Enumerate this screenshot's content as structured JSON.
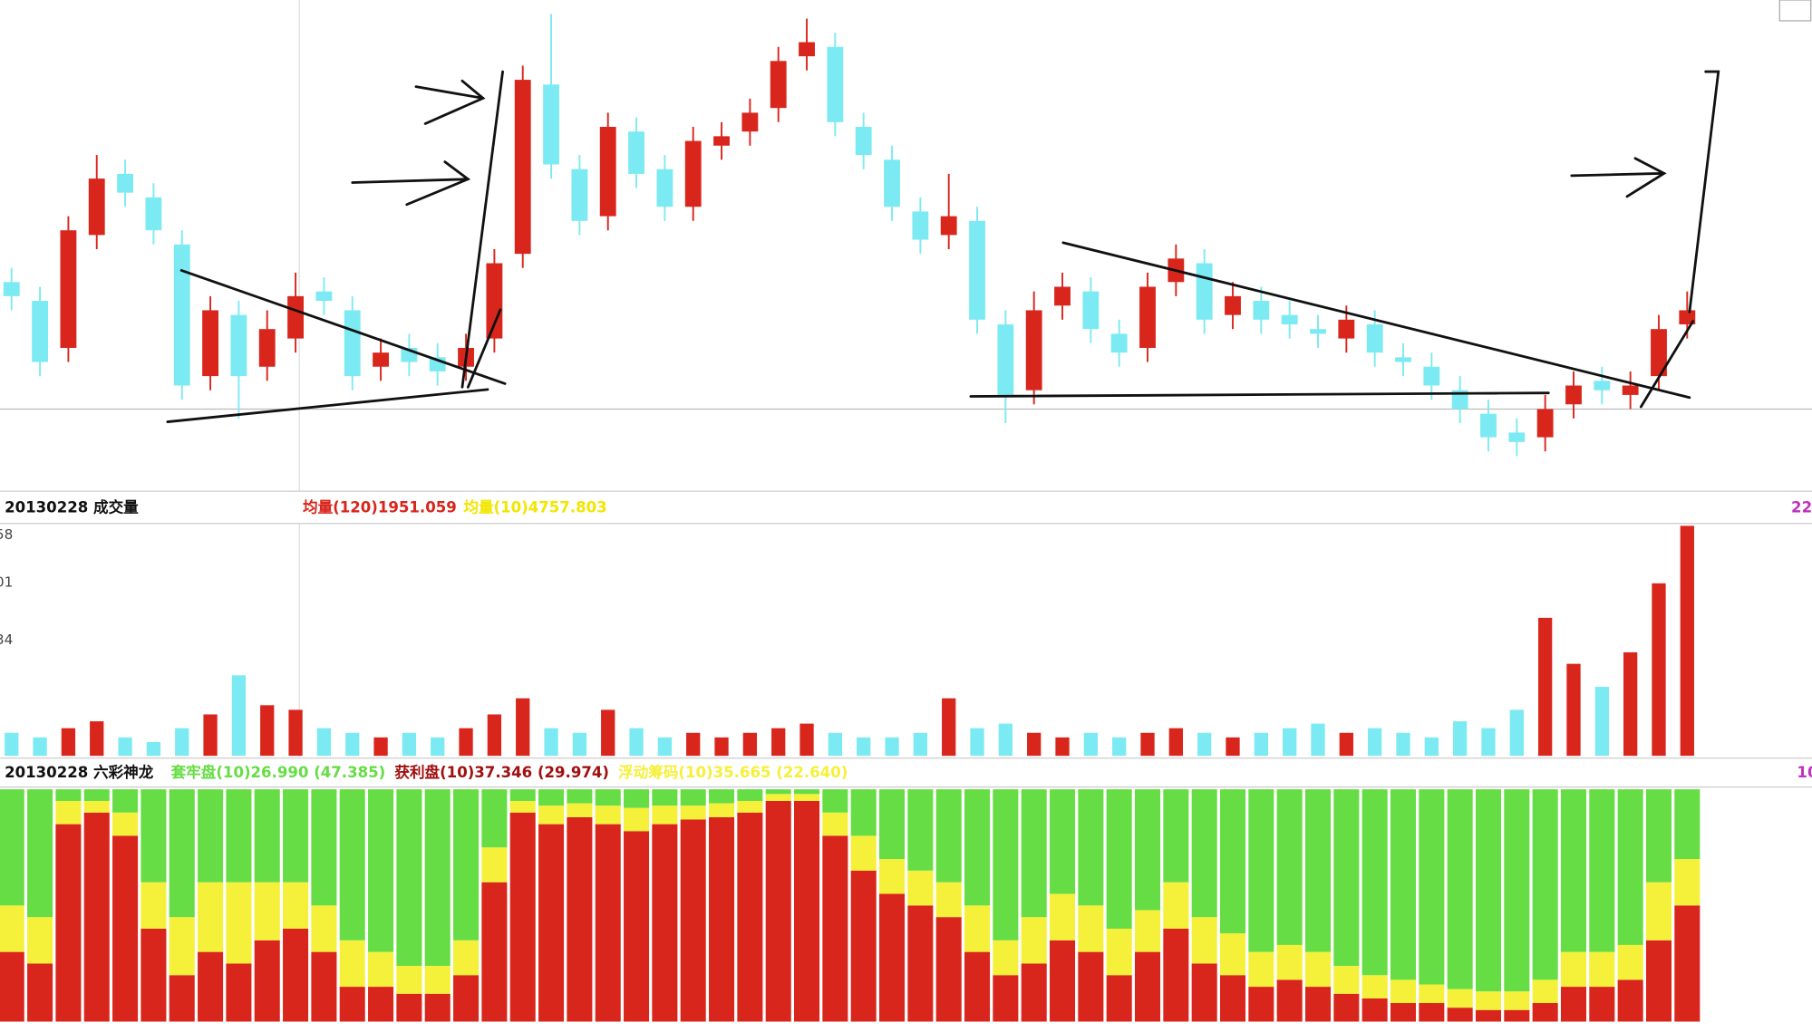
{
  "chart_data": [
    {
      "type": "candlestick",
      "up_color": "#d9261c",
      "down_color": "#7ceaf2",
      "ylim": [
        0,
        100
      ],
      "open": [
        42,
        38,
        28,
        52,
        65,
        60,
        50,
        22,
        35,
        24,
        30,
        40,
        36,
        24,
        28,
        26,
        24,
        30,
        48,
        84,
        66,
        56,
        74,
        66,
        58,
        71,
        74,
        79,
        90,
        92,
        75,
        68,
        57,
        52,
        55,
        33,
        19,
        37,
        40,
        31,
        28,
        42,
        46,
        35,
        38,
        35,
        32,
        30,
        33,
        26,
        24,
        19,
        14,
        10,
        9,
        16,
        21,
        18,
        22,
        33
      ],
      "high": [
        45,
        41,
        56,
        69,
        68,
        63,
        53,
        39,
        38,
        36,
        44,
        43,
        39,
        30,
        31,
        29,
        31,
        49,
        88,
        99,
        69,
        78,
        77,
        69,
        75,
        76,
        81,
        92,
        98,
        95,
        78,
        71,
        60,
        65,
        58,
        36,
        40,
        44,
        43,
        34,
        44,
        50,
        49,
        42,
        41,
        38,
        35,
        37,
        36,
        29,
        27,
        22,
        17,
        13,
        18,
        23,
        24,
        23,
        35,
        40
      ],
      "low": [
        36,
        22,
        25,
        49,
        58,
        50,
        17,
        19,
        13,
        21,
        27,
        35,
        19,
        21,
        22,
        20,
        21,
        27,
        45,
        64,
        52,
        53,
        62,
        55,
        55,
        68,
        71,
        76,
        87,
        73,
        66,
        55,
        48,
        49,
        31,
        12,
        16,
        34,
        29,
        24,
        25,
        39,
        31,
        32,
        31,
        30,
        28,
        27,
        24,
        22,
        17,
        12,
        6,
        5,
        6,
        13,
        16,
        15,
        19,
        30
      ],
      "close": [
        39,
        25,
        53,
        64,
        61,
        53,
        20,
        36,
        22,
        32,
        39,
        38,
        22,
        27,
        25,
        23,
        28,
        46,
        85,
        67,
        55,
        75,
        65,
        58,
        72,
        73,
        78,
        89,
        93,
        76,
        69,
        58,
        51,
        56,
        34,
        18,
        36,
        41,
        32,
        27,
        41,
        47,
        34,
        39,
        34,
        33,
        31,
        34,
        27,
        25,
        20,
        15,
        9,
        8,
        15,
        20,
        19,
        20,
        32,
        36
      ]
    },
    {
      "type": "bar",
      "title": "20130228 成交量",
      "legend": [
        {
          "text": "均量(120)1951.059",
          "color": "#d9261c"
        },
        {
          "text": "均量(10)4757.803",
          "color": "#f2e600"
        }
      ],
      "right_label": "22",
      "ytick_labels": [
        "58",
        "01",
        "34"
      ],
      "ylim": [
        0,
        100
      ],
      "values": [
        10,
        8,
        12,
        15,
        8,
        6,
        12,
        18,
        35,
        22,
        20,
        12,
        10,
        8,
        10,
        8,
        12,
        18,
        25,
        12,
        10,
        20,
        12,
        8,
        10,
        8,
        10,
        12,
        14,
        10,
        8,
        8,
        10,
        25,
        12,
        14,
        10,
        8,
        10,
        8,
        10,
        12,
        10,
        8,
        10,
        12,
        14,
        10,
        12,
        10,
        8,
        15,
        12,
        20,
        60,
        40,
        30,
        45,
        75,
        100
      ]
    },
    {
      "type": "stacked_bar",
      "title": "20130228 六彩神龙",
      "right_label": "10",
      "ylim": [
        0,
        100
      ],
      "series": [
        {
          "name": "套牢盘(10)26.990 (47.385)",
          "color": "#66dd44",
          "values": [
            50,
            55,
            5,
            5,
            10,
            40,
            55,
            40,
            40,
            40,
            40,
            50,
            65,
            70,
            76,
            76,
            65,
            25,
            5,
            7,
            6,
            7,
            8,
            7,
            7,
            6,
            5,
            2,
            2,
            10,
            20,
            30,
            35,
            40,
            50,
            65,
            55,
            45,
            50,
            60,
            52,
            40,
            55,
            62,
            70,
            67,
            70,
            76,
            80,
            82,
            84,
            86,
            87,
            87,
            82,
            70,
            70,
            67,
            40,
            30
          ]
        },
        {
          "name": "获利盘(10)37.346 (29.974)",
          "color": "#d9261c",
          "values": [
            30,
            25,
            85,
            90,
            80,
            40,
            20,
            30,
            25,
            35,
            40,
            30,
            15,
            15,
            12,
            12,
            20,
            60,
            90,
            85,
            88,
            85,
            82,
            85,
            87,
            88,
            90,
            95,
            95,
            80,
            65,
            55,
            50,
            45,
            30,
            20,
            25,
            35,
            30,
            20,
            30,
            40,
            25,
            20,
            15,
            18,
            15,
            12,
            10,
            8,
            8,
            6,
            5,
            5,
            8,
            15,
            15,
            18,
            35,
            50
          ]
        },
        {
          "name": "浮动筹码(10)35.665 (22.640)",
          "color": "#f5f03a",
          "values": [
            20,
            20,
            10,
            5,
            10,
            20,
            25,
            30,
            35,
            25,
            20,
            20,
            20,
            15,
            12,
            12,
            15,
            15,
            5,
            8,
            6,
            8,
            10,
            8,
            6,
            6,
            5,
            3,
            3,
            10,
            15,
            15,
            15,
            15,
            20,
            15,
            20,
            20,
            20,
            20,
            18,
            20,
            20,
            18,
            15,
            15,
            15,
            12,
            10,
            10,
            8,
            8,
            8,
            8,
            10,
            15,
            15,
            15,
            25,
            20
          ]
        }
      ]
    }
  ]
}
